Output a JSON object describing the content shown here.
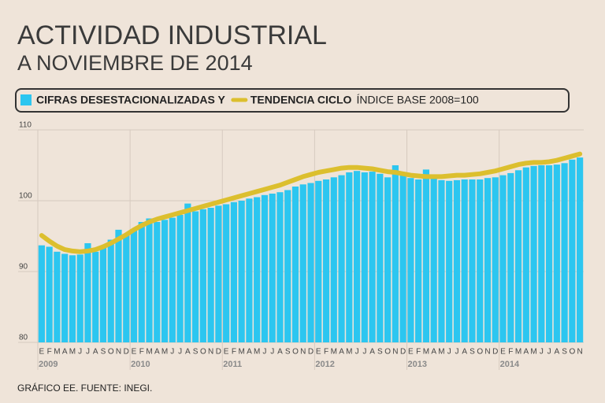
{
  "chart_data": {
    "type": "bar",
    "title": "ACTIVIDAD INDUSTRIAL",
    "subtitle": "A NOVIEMBRE DE 2014",
    "note": "ÍNDICE BASE 2008=100",
    "source": "GRÁFICO EE. FUENTE: INEGI.",
    "categories": [
      "E",
      "F",
      "M",
      "A",
      "M",
      "J",
      "J",
      "A",
      "S",
      "O",
      "N",
      "D",
      "E",
      "F",
      "M",
      "A",
      "M",
      "J",
      "J",
      "A",
      "S",
      "O",
      "N",
      "D",
      "E",
      "F",
      "M",
      "A",
      "M",
      "J",
      "J",
      "A",
      "S",
      "O",
      "N",
      "D",
      "E",
      "F",
      "M",
      "A",
      "M",
      "J",
      "J",
      "A",
      "S",
      "O",
      "N",
      "D",
      "E",
      "F",
      "M",
      "A",
      "M",
      "J",
      "J",
      "A",
      "S",
      "O",
      "N",
      "D",
      "E",
      "F",
      "M",
      "A",
      "M",
      "J",
      "J",
      "A",
      "S",
      "O",
      "N"
    ],
    "year_labels": [
      "2009",
      "2010",
      "2011",
      "2012",
      "2013",
      "2014"
    ],
    "series": [
      {
        "name": "CIFRAS DESESTACIONALIZADAS Y",
        "type": "bar",
        "color": "#2cc6f0",
        "values": [
          93.7,
          93.5,
          92.8,
          92.5,
          92.3,
          92.4,
          94.0,
          92.8,
          93.5,
          94.5,
          95.9,
          95.3,
          96.0,
          97.0,
          97.5,
          97.0,
          97.3,
          97.6,
          98.0,
          99.6,
          98.5,
          98.8,
          99.0,
          99.3,
          99.5,
          99.8,
          100.0,
          100.3,
          100.5,
          100.8,
          101.0,
          101.2,
          101.5,
          102.0,
          102.3,
          102.5,
          102.8,
          103.0,
          103.3,
          103.6,
          104.0,
          104.2,
          104.0,
          104.1,
          103.8,
          103.3,
          105.0,
          103.9,
          103.2,
          103.0,
          104.4,
          103.3,
          102.9,
          102.8,
          102.9,
          103.0,
          103.0,
          103.0,
          103.2,
          103.3,
          103.6,
          103.9,
          104.3,
          104.7,
          104.9,
          105.0,
          105.0,
          105.1,
          105.3,
          105.8,
          106.1
        ]
      },
      {
        "name": "TENDENCIA CICLO",
        "type": "line",
        "color": "#dcbf2e",
        "values": [
          95.1,
          94.3,
          93.6,
          93.1,
          92.9,
          92.8,
          92.9,
          93.1,
          93.5,
          94.0,
          94.6,
          95.2,
          95.9,
          96.5,
          97.0,
          97.4,
          97.7,
          98.0,
          98.3,
          98.6,
          98.9,
          99.2,
          99.5,
          99.8,
          100.1,
          100.4,
          100.7,
          101.0,
          101.3,
          101.6,
          101.9,
          102.2,
          102.6,
          103.0,
          103.4,
          103.7,
          104.0,
          104.2,
          104.4,
          104.6,
          104.7,
          104.7,
          104.6,
          104.5,
          104.3,
          104.1,
          104.0,
          103.8,
          103.6,
          103.5,
          103.4,
          103.4,
          103.4,
          103.5,
          103.6,
          103.6,
          103.7,
          103.8,
          104.0,
          104.2,
          104.5,
          104.8,
          105.1,
          105.3,
          105.4,
          105.4,
          105.5,
          105.7,
          106.0,
          106.3,
          106.6
        ]
      }
    ],
    "ylim": [
      80,
      110
    ],
    "yticks": [
      80,
      90,
      100,
      110
    ],
    "grid": true
  }
}
